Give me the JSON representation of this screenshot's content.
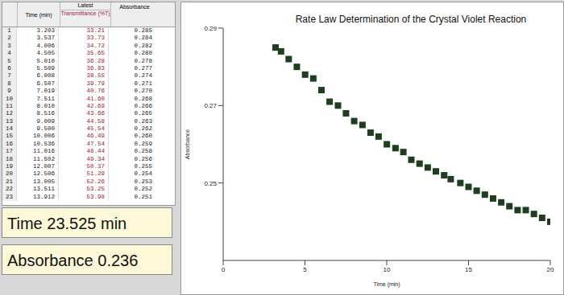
{
  "table": {
    "group_header": "Latest",
    "columns": [
      "Time (min)",
      "Transmittance (%T)",
      "Absorbance"
    ],
    "rows": [
      [
        "1",
        "3.203",
        "33.21",
        "0.285"
      ],
      [
        "2",
        "3.537",
        "33.73",
        "0.284"
      ],
      [
        "3",
        "4.006",
        "34.72",
        "0.282"
      ],
      [
        "4",
        "4.505",
        "35.65",
        "0.280"
      ],
      [
        "5",
        "5.010",
        "36.28",
        "0.278"
      ],
      [
        "6",
        "5.509",
        "36.83",
        "0.277"
      ],
      [
        "7",
        "6.008",
        "38.55",
        "0.274"
      ],
      [
        "8",
        "6.507",
        "39.79",
        "0.271"
      ],
      [
        "9",
        "7.019",
        "40.76",
        "0.270"
      ],
      [
        "10",
        "7.511",
        "41.60",
        "0.268"
      ],
      [
        "11",
        "8.010",
        "42.69",
        "0.266"
      ],
      [
        "12",
        "8.516",
        "43.66",
        "0.265"
      ],
      [
        "13",
        "9.009",
        "44.58",
        "0.263"
      ],
      [
        "14",
        "9.500",
        "45.54",
        "0.262"
      ],
      [
        "15",
        "10.006",
        "46.49",
        "0.260"
      ],
      [
        "16",
        "10.536",
        "47.54",
        "0.259"
      ],
      [
        "17",
        "11.016",
        "48.44",
        "0.258"
      ],
      [
        "18",
        "11.502",
        "49.34",
        "0.256"
      ],
      [
        "19",
        "12.007",
        "50.37",
        "0.255"
      ],
      [
        "20",
        "12.506",
        "51.29",
        "0.254"
      ],
      [
        "21",
        "13.005",
        "52.26",
        "0.253"
      ],
      [
        "22",
        "13.511",
        "53.25",
        "0.252"
      ],
      [
        "23",
        "13.912",
        "53.98",
        "0.251"
      ]
    ]
  },
  "readouts": [
    {
      "label": "Time",
      "value": "23.525",
      "unit": "min"
    },
    {
      "label": "Absorbance",
      "value": "0.236"
    }
  ],
  "chart_data": {
    "type": "scatter",
    "title": "Rate Law Determination of the Crystal Violet Reaction",
    "x_label": "Time (min)",
    "y_label": "Absorbance",
    "x": [
      3.203,
      3.537,
      4.006,
      4.505,
      5.01,
      5.509,
      6.008,
      6.507,
      7.019,
      7.511,
      8.01,
      8.516,
      9.009,
      9.5,
      10.006,
      10.536,
      11.016,
      11.502,
      12.007,
      12.506,
      13.005,
      13.511,
      13.912,
      14.5,
      15.0,
      15.5,
      16.0,
      16.5,
      17.0,
      17.5,
      18.0,
      18.5,
      19.0,
      19.5,
      20.0
    ],
    "values": [
      0.285,
      0.284,
      0.282,
      0.28,
      0.278,
      0.277,
      0.274,
      0.271,
      0.27,
      0.268,
      0.266,
      0.265,
      0.263,
      0.262,
      0.26,
      0.259,
      0.258,
      0.256,
      0.255,
      0.254,
      0.253,
      0.252,
      0.251,
      0.25,
      0.249,
      0.248,
      0.247,
      0.246,
      0.245,
      0.244,
      0.243,
      0.243,
      0.242,
      0.241,
      0.24
    ],
    "color": "#1f3d1f",
    "marker": "square",
    "xlim": [
      0,
      20
    ],
    "xticks": [
      0,
      5,
      10,
      15,
      20
    ],
    "ylim": [
      0.23,
      0.29
    ],
    "yticks": [
      0.25,
      0.27,
      0.29
    ],
    "grid": false
  }
}
